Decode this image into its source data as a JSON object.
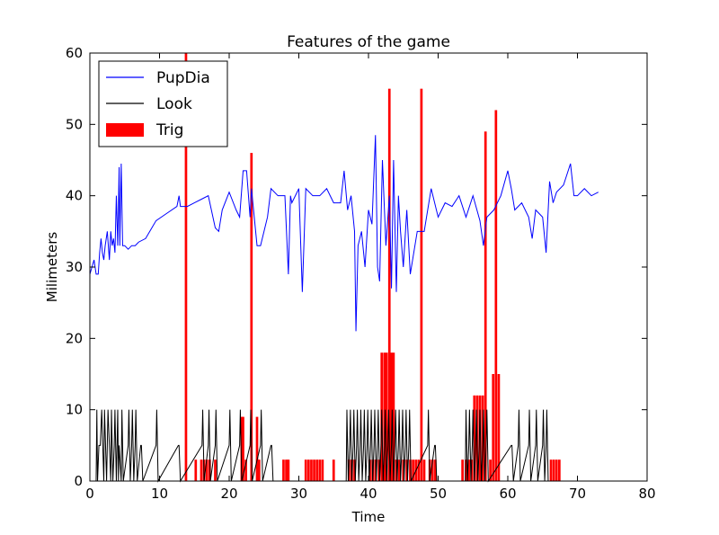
{
  "chart_data": {
    "type": "line",
    "title": "Features of the game",
    "xlabel": "Time",
    "ylabel": "Milimeters",
    "xlim": [
      0,
      80
    ],
    "ylim": [
      0,
      60
    ],
    "xticks": [
      0,
      10,
      20,
      30,
      40,
      50,
      60,
      70,
      80
    ],
    "yticks": [
      0,
      10,
      20,
      30,
      40,
      50,
      60
    ],
    "legend_position": "upper-left",
    "legend": [
      {
        "name": "PupDia",
        "color": "#0000ff",
        "kind": "line"
      },
      {
        "name": "Look",
        "color": "#000000",
        "kind": "line"
      },
      {
        "name": "Trig",
        "color": "#ff0000",
        "kind": "patch"
      }
    ],
    "series": [
      {
        "name": "PupDia",
        "color": "#0000ff",
        "x": [
          0,
          0.3,
          0.6,
          0.9,
          1.2,
          1.4,
          1.6,
          1.8,
          2.0,
          2.2,
          2.5,
          2.8,
          3.0,
          3.2,
          3.4,
          3.6,
          3.8,
          4.0,
          4.2,
          4.3,
          4.5,
          4.7,
          5.0,
          5.5,
          6.0,
          6.5,
          7.0,
          8.0,
          9.5,
          11.0,
          12.5,
          12.8,
          13.0,
          14.0,
          15.0,
          16.0,
          17.0,
          18.0,
          18.5,
          19.0,
          20.0,
          21.0,
          21.5,
          22.0,
          22.5,
          23.0,
          23.2,
          23.5,
          24.0,
          24.5,
          25.0,
          25.5,
          26.0,
          27.0,
          28.0,
          28.5,
          28.8,
          29.0,
          30.0,
          30.5,
          31.0,
          32.0,
          33.0,
          34.0,
          35.0,
          36.0,
          36.5,
          37.0,
          37.5,
          38.0,
          38.2,
          38.5,
          39.0,
          39.5,
          40.0,
          40.5,
          41.0,
          41.3,
          41.6,
          42.0,
          42.5,
          43.0,
          43.3,
          43.6,
          44.0,
          44.3,
          44.6,
          45.0,
          45.5,
          46.0,
          47.0,
          48.0,
          49.0,
          50.0,
          51.0,
          52.0,
          53.0,
          54.0,
          55.0,
          56.0,
          56.5,
          57.0,
          58.0,
          59.0,
          60.0,
          60.5,
          61.0,
          62.0,
          63.0,
          63.5,
          64.0,
          65.0,
          65.5,
          66.0,
          66.5,
          67.0,
          68.0,
          69.0,
          69.5,
          70.0,
          71.0,
          72.0,
          73.0
        ],
        "y": [
          29,
          30,
          31,
          29,
          29,
          32,
          34,
          32,
          31,
          33,
          35,
          31,
          35,
          33,
          34,
          32,
          40,
          33,
          44,
          33,
          44.5,
          33,
          33,
          32.5,
          33,
          33,
          33.5,
          34,
          36.5,
          37.5,
          38.5,
          40,
          38.5,
          38.5,
          39,
          39.5,
          40,
          35.5,
          35,
          38,
          40.5,
          38,
          37,
          43.5,
          43.5,
          37,
          41,
          38,
          33,
          33,
          35,
          37,
          41,
          40,
          40,
          29,
          40,
          39,
          41,
          26.5,
          41,
          40,
          40,
          41,
          39,
          39,
          43.5,
          38,
          40,
          35,
          21,
          33,
          35,
          30,
          38,
          36,
          48.5,
          30,
          28,
          45,
          33,
          40,
          27,
          45,
          26.5,
          40,
          35,
          30,
          38,
          29,
          35,
          35,
          41,
          37,
          39,
          38.5,
          40,
          37,
          40,
          36.5,
          33,
          37,
          38,
          40,
          43.5,
          41,
          38,
          39,
          37,
          34,
          38,
          37,
          32,
          42,
          39,
          40.5,
          41.5,
          44.5,
          40,
          40,
          41,
          40,
          40.5
        ]
      },
      {
        "name": "Look",
        "color": "#000000",
        "x": [
          0.0,
          0.9,
          1.0,
          1.1,
          1.3,
          1.5,
          1.7,
          2.0,
          2.1,
          2.4,
          2.5,
          2.6,
          3.0,
          3.1,
          3.3,
          3.5,
          3.6,
          3.8,
          4.0,
          4.1,
          4.2,
          4.5,
          4.6,
          4.8,
          5.5,
          5.6,
          5.8,
          6.0,
          6.1,
          6.3,
          6.5,
          6.6,
          6.8,
          7.3,
          7.4,
          7.6,
          9.5,
          9.6,
          9.8,
          12.7,
          12.8,
          13.0,
          16.1,
          16.2,
          16.4,
          17.0,
          17.1,
          17.3,
          18.0,
          18.1,
          18.3,
          20.0,
          20.1,
          20.3,
          21.5,
          21.6,
          21.8,
          23.0,
          23.1,
          23.3,
          24.5,
          24.6,
          24.8,
          26.0,
          26.1,
          26.3,
          36.8,
          36.9,
          37.1,
          37.3,
          37.4,
          37.6,
          37.8,
          37.9,
          38.1,
          38.3,
          38.4,
          38.6,
          38.8,
          38.9,
          39.1,
          39.3,
          39.4,
          39.6,
          39.8,
          39.9,
          40.1,
          40.3,
          40.4,
          40.6,
          40.8,
          40.9,
          41.1,
          41.3,
          41.4,
          41.6,
          41.8,
          41.9,
          42.1,
          42.3,
          42.4,
          42.6,
          42.8,
          42.9,
          43.1,
          43.3,
          43.4,
          43.6,
          43.8,
          43.9,
          44.1,
          44.3,
          44.4,
          44.6,
          44.8,
          44.9,
          45.1,
          45.3,
          45.4,
          45.6,
          45.8,
          45.9,
          46.1,
          48.5,
          48.6,
          48.8,
          49.5,
          49.6,
          49.8,
          53.9,
          54.0,
          54.2,
          54.4,
          54.5,
          54.7,
          54.9,
          55.0,
          55.2,
          55.4,
          55.5,
          55.7,
          55.9,
          56.0,
          56.2,
          56.4,
          56.5,
          56.7,
          56.9,
          57.0,
          57.2,
          60.5,
          60.6,
          60.8,
          61.5,
          61.6,
          61.8,
          63.0,
          63.1,
          63.3,
          64.0,
          64.1,
          64.3,
          65.0,
          65.1,
          65.3,
          65.5,
          65.6,
          65.8,
          72.9
        ],
        "y": [
          0,
          0,
          10,
          0,
          5,
          5,
          10,
          0,
          10,
          0,
          5,
          10,
          0,
          10,
          0,
          5,
          10,
          0,
          10,
          0,
          5,
          0,
          10,
          0,
          5,
          10,
          0,
          5,
          10,
          0,
          5,
          10,
          0,
          5,
          5,
          0,
          5,
          10,
          0,
          5,
          5,
          0,
          5,
          10,
          0,
          5,
          10,
          0,
          5,
          10,
          0,
          5,
          10,
          0,
          5,
          10,
          0,
          5,
          10,
          0,
          5,
          10,
          0,
          5,
          5,
          0,
          0,
          10,
          0,
          5,
          10,
          0,
          5,
          10,
          0,
          5,
          10,
          0,
          5,
          10,
          0,
          5,
          10,
          0,
          5,
          10,
          0,
          5,
          10,
          0,
          5,
          10,
          0,
          5,
          10,
          0,
          5,
          10,
          0,
          5,
          10,
          0,
          5,
          10,
          0,
          5,
          10,
          0,
          5,
          10,
          0,
          5,
          10,
          0,
          5,
          10,
          0,
          5,
          10,
          0,
          5,
          10,
          0,
          5,
          10,
          0,
          5,
          5,
          0,
          0,
          10,
          0,
          5,
          10,
          0,
          5,
          10,
          0,
          5,
          10,
          0,
          5,
          10,
          0,
          5,
          10,
          0,
          5,
          10,
          0,
          5,
          5,
          0,
          5,
          10,
          0,
          5,
          10,
          0,
          5,
          10,
          0,
          5,
          10,
          0,
          5,
          10,
          0,
          0
        ]
      }
    ],
    "trig_bars": {
      "name": "Trig",
      "color": "#ff0000",
      "x": [
        13.8,
        15.2,
        16.0,
        16.4,
        16.8,
        17.2,
        18.0,
        21.8,
        22.0,
        22.4,
        23.2,
        24.0,
        24.3,
        27.8,
        28.2,
        28.5,
        31.0,
        31.4,
        31.8,
        32.2,
        32.6,
        33.0,
        33.4,
        35.0,
        37.2,
        37.6,
        38.0,
        40.2,
        40.6,
        41.0,
        41.5,
        41.9,
        42.3,
        42.6,
        43.0,
        43.3,
        43.6,
        44.0,
        44.4,
        45.0,
        45.5,
        46.0,
        46.4,
        46.8,
        47.2,
        47.6,
        48.0,
        48.8,
        49.2,
        49.6,
        53.5,
        54.0,
        54.4,
        54.8,
        55.2,
        55.6,
        56.0,
        56.4,
        56.8,
        57.5,
        57.9,
        58.3,
        58.7,
        66.2,
        66.6,
        67.0,
        67.4
      ],
      "y": [
        60,
        3,
        3,
        3,
        3,
        3,
        3,
        9,
        9,
        3,
        46,
        9,
        3,
        3,
        3,
        3,
        3,
        3,
        3,
        3,
        3,
        3,
        3,
        3,
        3,
        3,
        3,
        3,
        3,
        3,
        3,
        18,
        18,
        18,
        55,
        18,
        18,
        3,
        3,
        3,
        3,
        3,
        3,
        3,
        3,
        55,
        3,
        3,
        3,
        3,
        3,
        3,
        3,
        3,
        12,
        12,
        12,
        12,
        49,
        3,
        15,
        52,
        15,
        3,
        3,
        3,
        3
      ]
    }
  }
}
